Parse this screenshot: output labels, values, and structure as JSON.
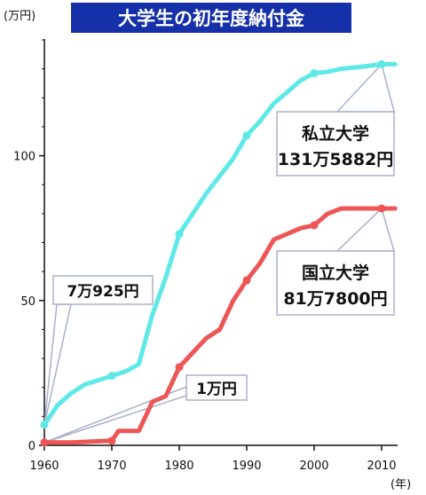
{
  "chart_data": {
    "type": "line",
    "title": "大学生の初年度納付金",
    "y_unit": "(万円)",
    "x_unit": "(年)",
    "xlim": [
      1960,
      2012
    ],
    "ylim": [
      0,
      140
    ],
    "x_ticks": [
      1960,
      1970,
      1980,
      1990,
      2000,
      2010
    ],
    "y_ticks": [
      0,
      50,
      100
    ],
    "grid": false,
    "series": [
      {
        "name": "私立大学",
        "color": "#5ee8e8",
        "x": [
          1960,
          1962,
          1964,
          1966,
          1968,
          1970,
          1972,
          1974,
          1976,
          1978,
          1980,
          1982,
          1984,
          1986,
          1988,
          1990,
          1992,
          1994,
          1996,
          1998,
          2000,
          2002,
          2004,
          2006,
          2008,
          2010,
          2012
        ],
        "values": [
          7.1,
          14,
          18,
          21,
          22.5,
          24,
          25.5,
          28,
          45,
          58,
          73,
          80,
          87,
          93,
          99,
          107,
          112,
          118,
          122,
          126,
          128.5,
          129,
          130,
          130.5,
          131,
          131.6,
          131.6
        ],
        "markers_at": [
          1960,
          1970,
          1980,
          1990,
          2000,
          2010
        ]
      },
      {
        "name": "国立大学",
        "color": "#ee5555",
        "x": [
          1960,
          1962,
          1964,
          1966,
          1968,
          1970,
          1971,
          1972,
          1974,
          1975,
          1976,
          1978,
          1980,
          1982,
          1984,
          1986,
          1988,
          1990,
          1992,
          1994,
          1996,
          1998,
          2000,
          2002,
          2004,
          2006,
          2008,
          2010,
          2012
        ],
        "values": [
          1,
          1,
          1,
          1.2,
          1.4,
          1.6,
          5,
          5,
          5,
          10,
          15,
          17,
          27,
          32,
          37,
          40,
          50,
          57,
          63,
          71,
          73,
          75,
          76,
          80,
          81.8,
          81.8,
          81.8,
          81.8,
          81.8
        ],
        "markers_at": [
          1960,
          1970,
          1980,
          1990,
          2000,
          2010
        ]
      }
    ],
    "callouts": [
      {
        "id": "private-2010",
        "lines": [
          "私立大学",
          "131万5882円"
        ],
        "target_x": 2010,
        "target_y": 131.6
      },
      {
        "id": "national-2010",
        "lines": [
          "国立大学",
          "81万7800円"
        ],
        "target_x": 2010,
        "target_y": 81.8
      },
      {
        "id": "private-1960",
        "lines": [
          "7万925円"
        ],
        "target_x": 1960,
        "target_y": 7.1
      },
      {
        "id": "national-1960",
        "lines": [
          "1万円"
        ],
        "target_x": 1960,
        "target_y": 1
      }
    ],
    "colors": {
      "title_bg": "#1530a8",
      "title_text": "#ffffff",
      "axis": "#111111",
      "callout_border": "#aab0cc"
    }
  }
}
